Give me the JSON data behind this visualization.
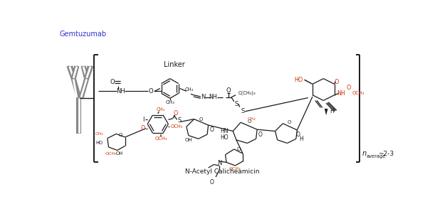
{
  "background_color": "#ffffff",
  "gemtuzumab_label": "Gemtuzumab",
  "linker_label": "Linker",
  "calicheamicin_label": "N-Acetyl Calicheamicin",
  "n_average_text": "n",
  "n_sub": "average",
  "n_val": "~2-3",
  "figsize": [
    6.04,
    2.8
  ],
  "dpi": 100
}
